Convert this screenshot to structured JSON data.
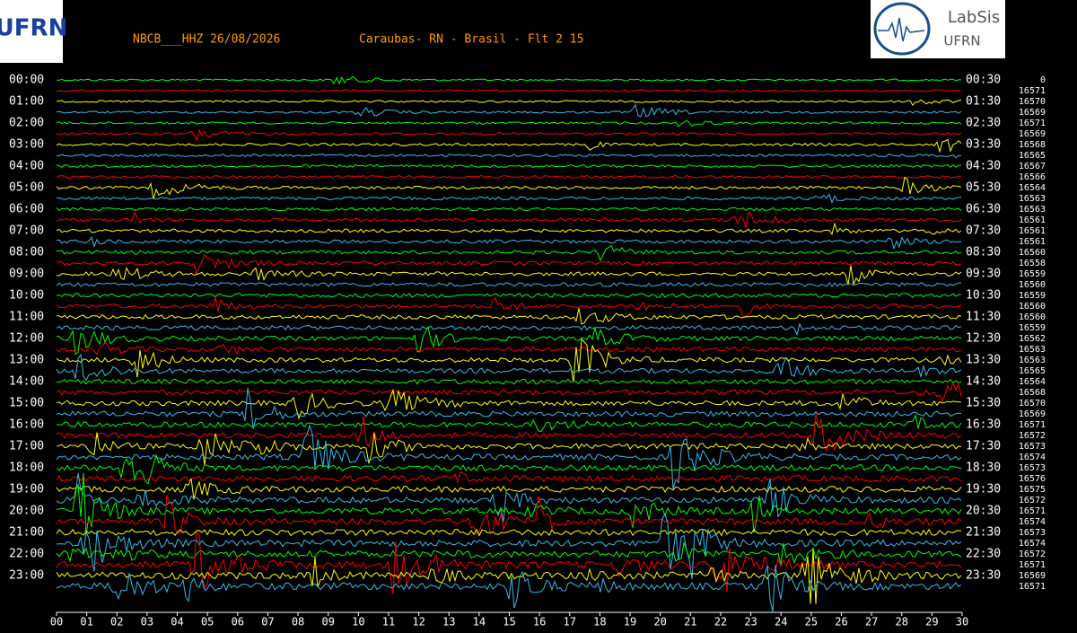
{
  "header": {
    "station": "NBCB___HHZ 26/08/2026",
    "location": "Caraubas- RN - Brasil - Flt 2 15"
  },
  "logos": {
    "left": "UFRN",
    "right_title": "LabSis",
    "right_subtitle": "UFRN"
  },
  "left_times": [
    "00:00",
    "01:00",
    "02:00",
    "03:00",
    "04:00",
    "05:00",
    "06:00",
    "07:00",
    "08:00",
    "09:00",
    "10:00",
    "11:00",
    "12:00",
    "13:00",
    "14:00",
    "15:00",
    "16:00",
    "17:00",
    "18:00",
    "19:00",
    "20:00",
    "21:00",
    "22:00",
    "23:00"
  ],
  "right_times": [
    "00:30",
    "01:30",
    "02:30",
    "03:30",
    "04:30",
    "05:30",
    "06:30",
    "07:30",
    "08:30",
    "09:30",
    "10:30",
    "11:30",
    "12:30",
    "13:30",
    "14:30",
    "15:30",
    "16:30",
    "17:30",
    "18:30",
    "19:30",
    "20:30",
    "21:30",
    "22:30",
    "23:30"
  ],
  "row_counts": [
    0,
    16571,
    16570,
    16569,
    16571,
    16569,
    16568,
    16565,
    16567,
    16566,
    16564,
    16563,
    16563,
    16561,
    16561,
    16561,
    16560,
    16558,
    16559,
    16560,
    16559,
    16560,
    16560,
    16559,
    16562,
    16563,
    16563,
    16565,
    16564,
    16568,
    16570,
    16569,
    16571,
    16572,
    16573,
    16574,
    16573,
    16576,
    16575,
    16572,
    16571,
    16574,
    16573,
    16574,
    16572,
    16571,
    16569,
    16571
  ],
  "minutes": [
    "00",
    "01",
    "02",
    "03",
    "04",
    "05",
    "06",
    "07",
    "08",
    "09",
    "10",
    "11",
    "12",
    "13",
    "14",
    "15",
    "16",
    "17",
    "18",
    "19",
    "20",
    "21",
    "22",
    "23",
    "24",
    "25",
    "26",
    "27",
    "28",
    "29",
    "30"
  ],
  "trace_colors": [
    "#00ff00",
    "#ff0000",
    "#ffff00",
    "#33bbee"
  ]
}
